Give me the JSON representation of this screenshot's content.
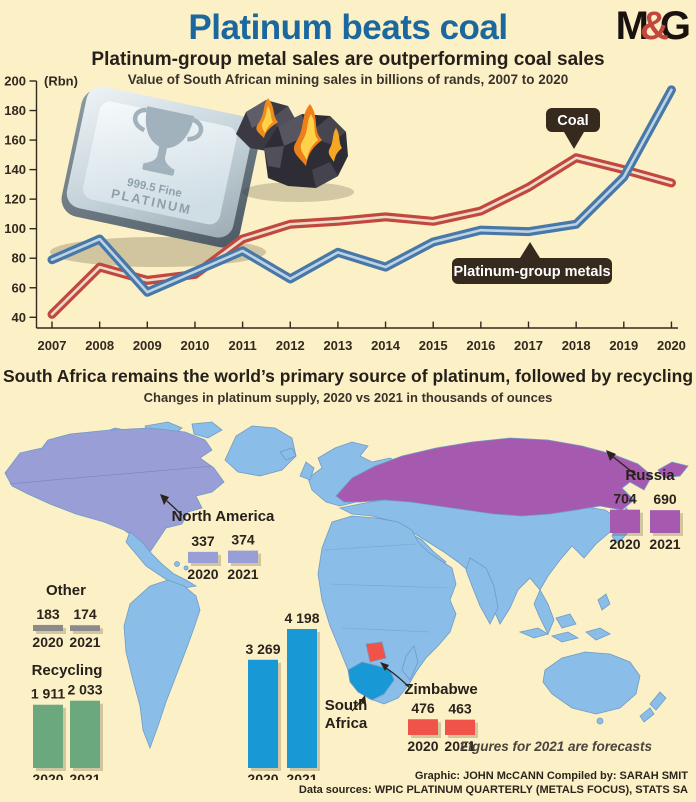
{
  "logo": {
    "m": "M",
    "amp": "&",
    "g": "G"
  },
  "colors": {
    "bg": "#fcf0c7",
    "title": "#1a689e",
    "coal": "#c2483e",
    "coal_core": "#ecddca",
    "pgm": "#4878a8",
    "pgm_core": "#bdd3e3",
    "land": "#8abde8",
    "landline": "#6f9cc4",
    "na": "#9a9ed6",
    "ru": "#a55ab0",
    "sa": "#1899d5",
    "zw": "#f05448",
    "recycling": "#6ba87d",
    "other": "#8b8b8b"
  },
  "header": {
    "title": "Platinum beats coal",
    "subtitle": "Platinum-group metal sales are outperforming coal sales",
    "description": "Value of South African mining sales in billions of rands, 2007 to 2020"
  },
  "ingot": {
    "line1": "999.5 Fine",
    "line2": "PLATINUM"
  },
  "chart_data": [
    {
      "type": "line",
      "title": "Platinum-group metal sales are outperforming coal sales",
      "unit_label": "(Rbn)",
      "x": [
        2007,
        2008,
        2009,
        2010,
        2011,
        2012,
        2013,
        2014,
        2015,
        2016,
        2017,
        2018,
        2019,
        2020
      ],
      "ylim": [
        40,
        200
      ],
      "yticks": [
        40,
        60,
        80,
        100,
        120,
        140,
        160,
        180,
        200
      ],
      "grid": false,
      "series": [
        {
          "id": "coal",
          "name": "Coal",
          "color": "#c2483e",
          "core": "#ecddca",
          "values": [
            42,
            74,
            65,
            69,
            93,
            103,
            105,
            108,
            105,
            112,
            128,
            148,
            140,
            131
          ]
        },
        {
          "id": "pgm",
          "name": "Platinum-group metals",
          "color": "#4878a8",
          "core": "#bdd3e3",
          "values": [
            79,
            93,
            57,
            71,
            85,
            66,
            84,
            74,
            91,
            99,
            98,
            103,
            135,
            194
          ]
        }
      ]
    },
    {
      "type": "bar",
      "title": "Changes in platinum supply, 2020 vs 2021 in thousands of ounces",
      "categories": [
        "2020",
        "2021"
      ],
      "series": [
        {
          "id": "south-africa",
          "name": "South Africa",
          "values": [
            3269,
            4198
          ],
          "labels": [
            "3 269",
            "4 198"
          ],
          "color": "#1899d5"
        },
        {
          "id": "russia",
          "name": "Russia",
          "values": [
            704,
            690
          ],
          "labels": [
            "704",
            "690"
          ],
          "color": "#a55ab0"
        },
        {
          "id": "north-america",
          "name": "North America",
          "values": [
            337,
            374
          ],
          "labels": [
            "337",
            "374"
          ],
          "color": "#9a9ed6"
        },
        {
          "id": "zimbabwe",
          "name": "Zimbabwe",
          "values": [
            476,
            463
          ],
          "labels": [
            "476",
            "463"
          ],
          "color": "#f05448"
        },
        {
          "id": "recycling",
          "name": "Recycling",
          "values": [
            1911,
            2033
          ],
          "labels": [
            "1 911",
            "2 033"
          ],
          "color": "#6ba87d"
        },
        {
          "id": "other",
          "name": "Other",
          "values": [
            183,
            174
          ],
          "labels": [
            "183",
            "174"
          ],
          "color": "#8b8b8b"
        }
      ],
      "note": "Figures for 2021 are forecasts"
    }
  ],
  "map_section": {
    "title": "South Africa remains the world’s primary source of platinum, followed by recycling",
    "subtitle": "Changes in platinum supply, 2020 vs 2021 in thousands of ounces"
  },
  "footer": {
    "credit": "Graphic: JOHN McCANN  Compiled by: SARAH SMIT",
    "sources": "Data sources: WPIC PLATINUM QUARTERLY (METALS FOCUS), STATS SA"
  }
}
